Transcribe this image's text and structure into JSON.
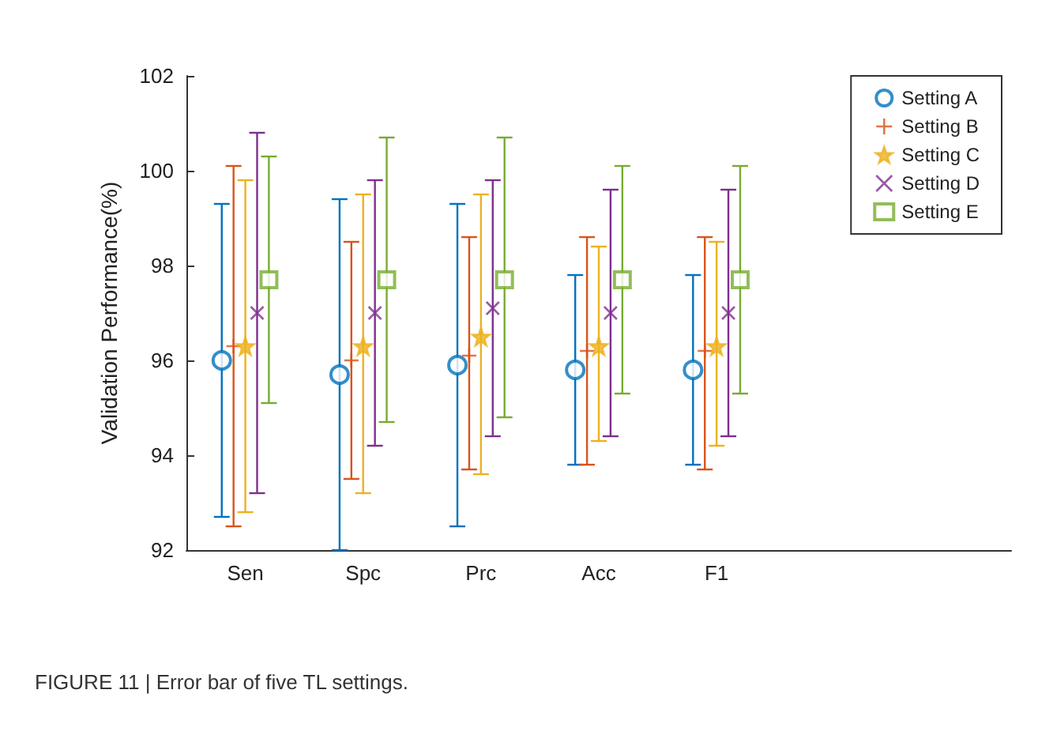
{
  "chart_data": {
    "type": "scatter",
    "ylabel": "Validation Performance(%)",
    "categories": [
      "Sen",
      "Spc",
      "Prc",
      "Acc",
      "F1",
      null,
      null
    ],
    "ylim": [
      92,
      102
    ],
    "yticks": [
      92,
      94,
      96,
      98,
      100,
      102
    ],
    "grid": false,
    "legend": "top right",
    "annotations": [
      "FIGURE 11 | Error bar of five TL settings."
    ],
    "series": [
      {
        "name": "Setting A",
        "color": "#0072bd",
        "marker": "circle",
        "values": [
          96.0,
          95.7,
          95.9,
          95.8,
          95.8,
          null,
          null
        ],
        "errors": [
          [
            92.7,
            99.3
          ],
          [
            92.0,
            99.4
          ],
          [
            92.5,
            99.3
          ],
          [
            93.8,
            97.8
          ],
          [
            93.8,
            97.8
          ],
          null,
          null
        ]
      },
      {
        "name": "Setting B",
        "color": "#d95319",
        "marker": "plus",
        "values": [
          96.3,
          96.0,
          96.1,
          96.2,
          96.2,
          null,
          null
        ],
        "errors": [
          [
            92.5,
            100.1
          ],
          [
            93.5,
            98.5
          ],
          [
            93.7,
            98.6
          ],
          [
            93.8,
            98.6
          ],
          [
            93.7,
            98.6
          ],
          null,
          null
        ]
      },
      {
        "name": "Setting C",
        "color": "#edb120",
        "marker": "star",
        "values": [
          96.3,
          96.3,
          96.5,
          96.3,
          96.3,
          null,
          null
        ],
        "errors": [
          [
            92.8,
            99.8
          ],
          [
            93.2,
            99.5
          ],
          [
            93.6,
            99.5
          ],
          [
            94.3,
            98.4
          ],
          [
            94.2,
            98.5
          ],
          null,
          null
        ]
      },
      {
        "name": "Setting D",
        "color": "#7e2f8e",
        "marker": "cross",
        "values": [
          97.0,
          97.0,
          97.1,
          97.0,
          97.0,
          null,
          null
        ],
        "errors": [
          [
            93.2,
            100.8
          ],
          [
            94.2,
            99.8
          ],
          [
            94.4,
            99.8
          ],
          [
            94.4,
            99.6
          ],
          [
            94.4,
            99.6
          ],
          null,
          null
        ]
      },
      {
        "name": "Setting E",
        "color": "#77ac30",
        "marker": "square",
        "values": [
          97.7,
          97.7,
          97.7,
          97.7,
          97.7,
          null,
          null
        ],
        "errors": [
          [
            95.1,
            100.3
          ],
          [
            94.7,
            100.7
          ],
          [
            94.8,
            100.7
          ],
          [
            95.3,
            100.1
          ],
          [
            95.3,
            100.1
          ],
          null,
          null
        ]
      }
    ]
  }
}
